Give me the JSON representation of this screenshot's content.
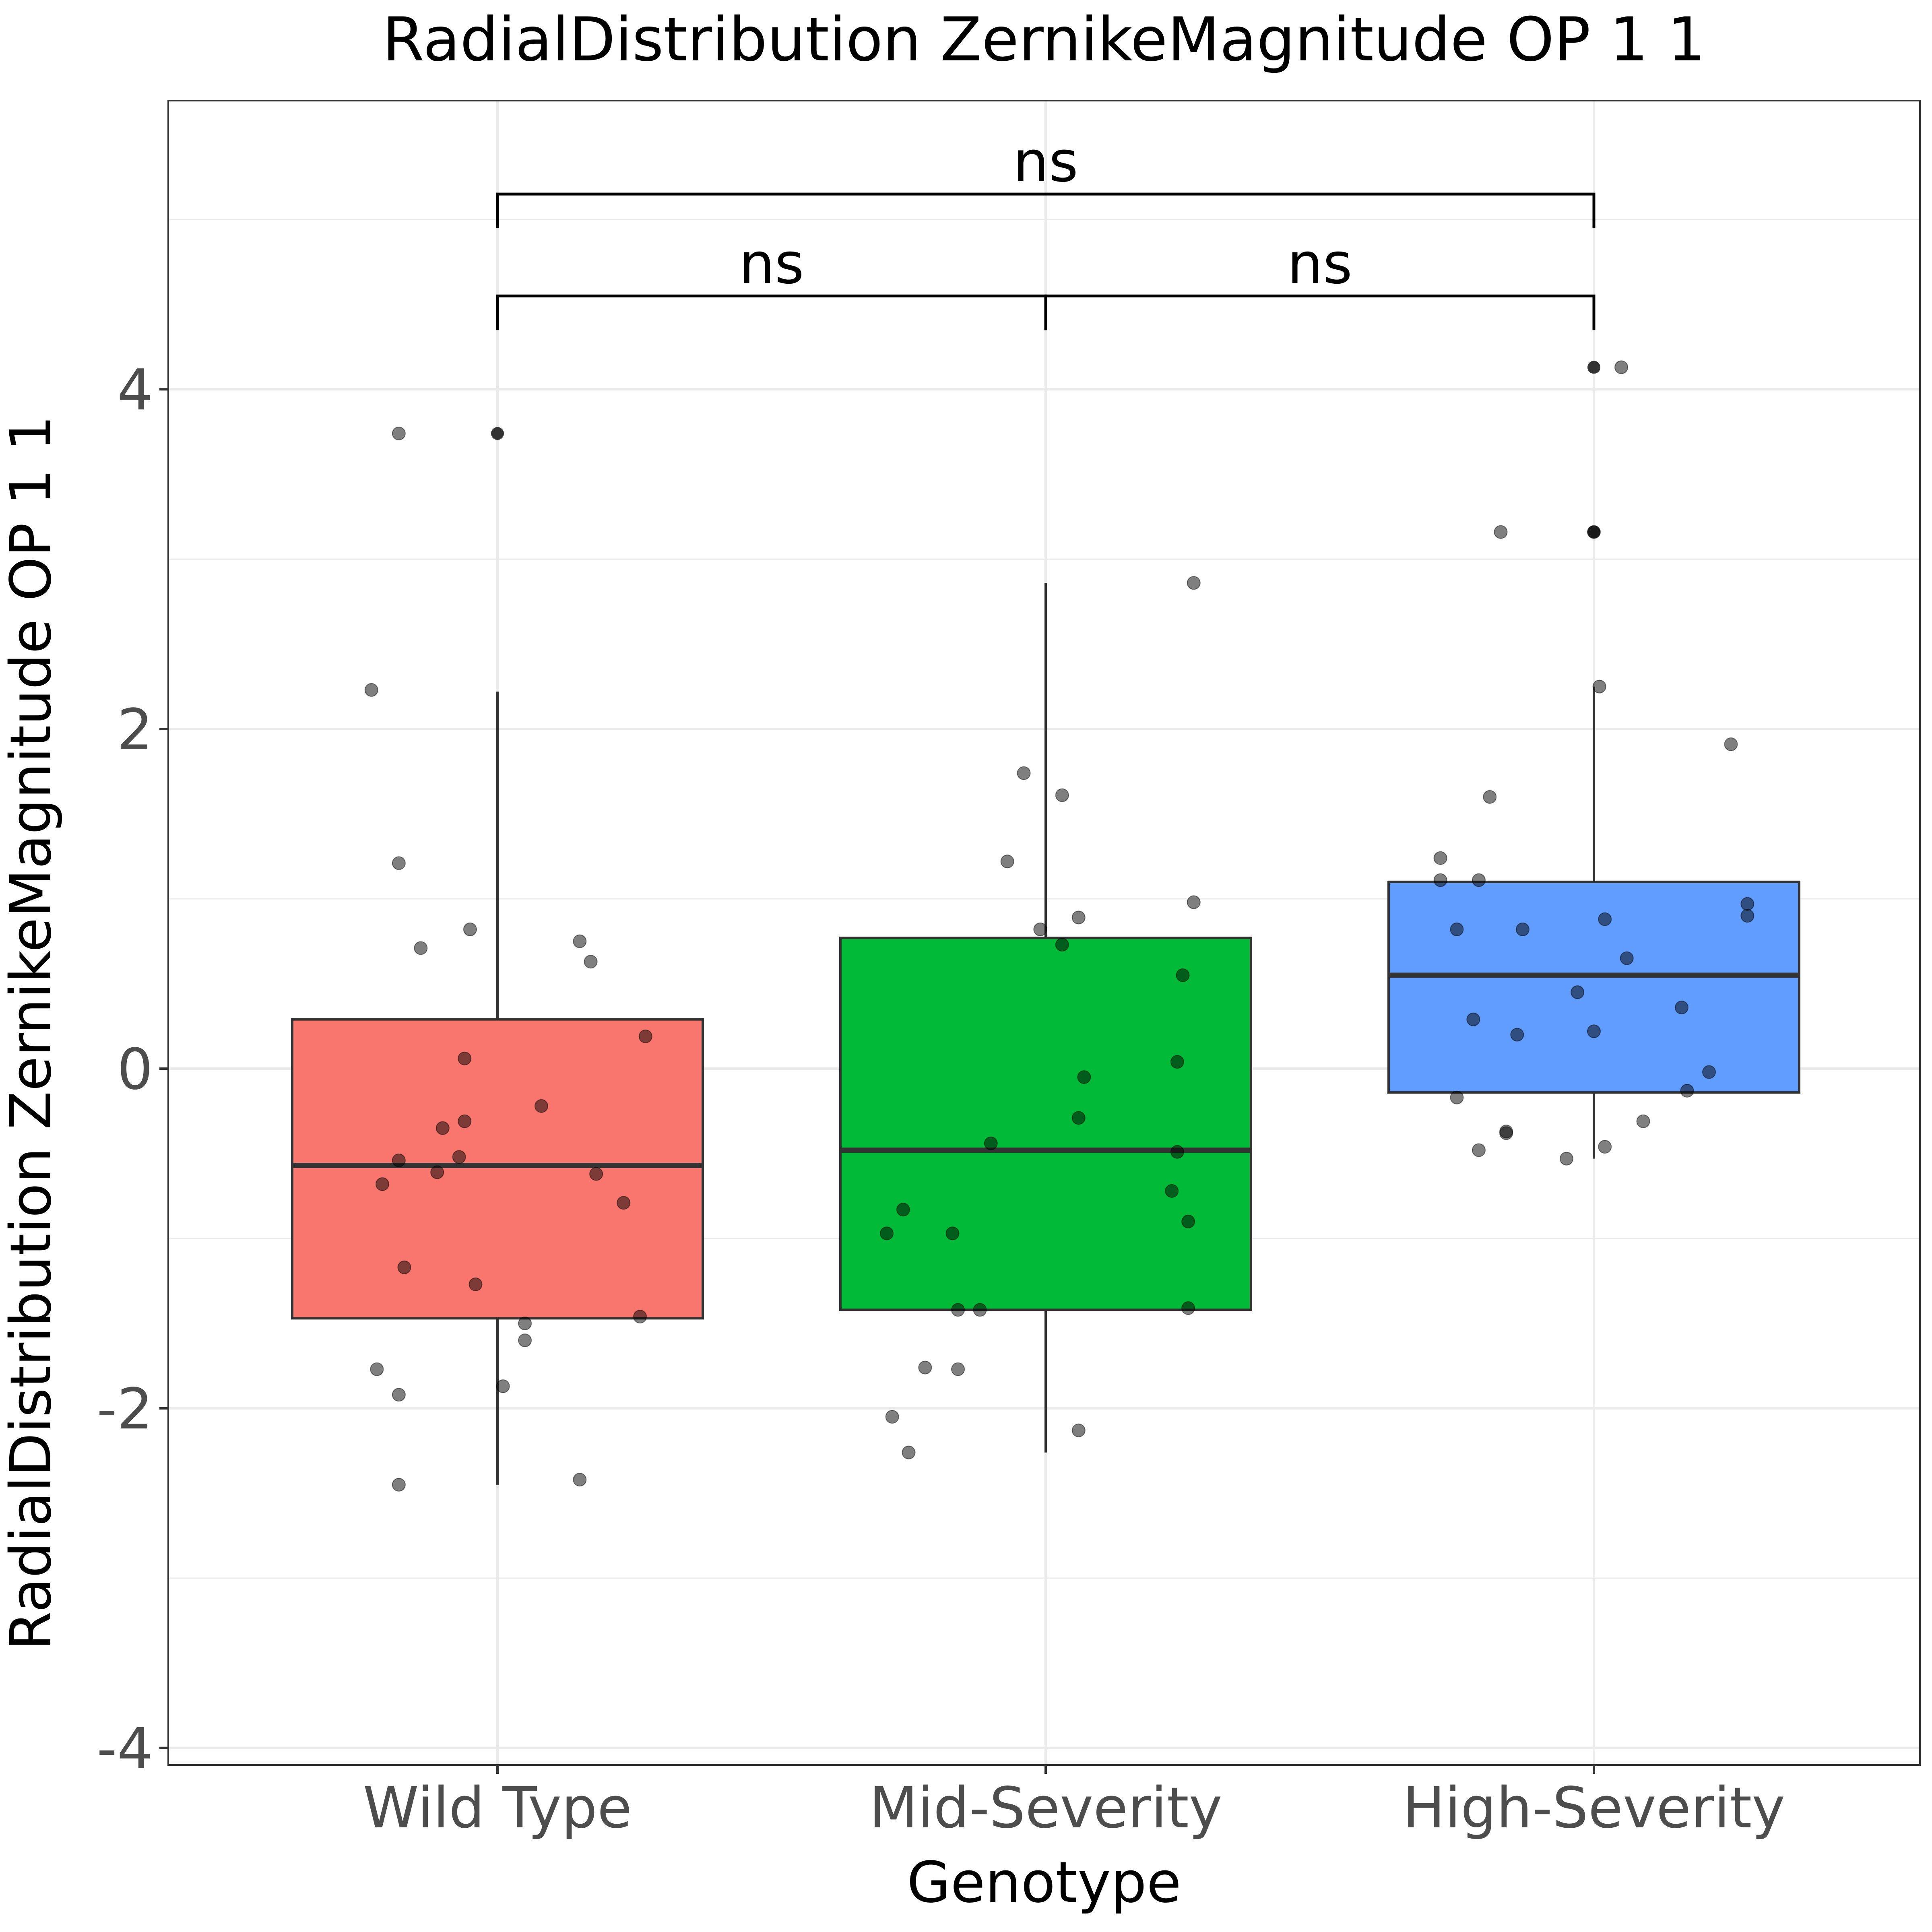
{
  "chart_data": {
    "type": "box",
    "title": "RadialDistribution ZernikeMagnitude OP 1 1",
    "xlabel": "Genotype",
    "ylabel": "RadialDistribution ZernikeMagnitude OP 1 1",
    "ylim": [
      -4.1,
      5.7
    ],
    "yticks": [
      -4,
      -2,
      0,
      2,
      4
    ],
    "ytick_labels": [
      "-4",
      "-2",
      "0",
      "2",
      "4"
    ],
    "minor_ygrid": [
      -3,
      -1,
      1,
      3,
      5
    ],
    "grid": true,
    "legend": "none",
    "categories": [
      "Wild Type",
      "Mid-Severity",
      "High-Severity"
    ],
    "colors": [
      "#F8766D",
      "#00BA38",
      "#619CFF"
    ],
    "boxes": [
      {
        "name": "Wild Type",
        "q1": -1.47,
        "median": -0.57,
        "q3": 0.29,
        "whisker_low": -2.45,
        "whisker_high": 2.22,
        "outliers": [
          3.74
        ]
      },
      {
        "name": "Mid-Severity",
        "q1": -1.42,
        "median": -0.48,
        "q3": 0.77,
        "whisker_low": -2.26,
        "whisker_high": 2.86,
        "outliers": []
      },
      {
        "name": "High-Severity",
        "q1": -0.14,
        "median": 0.55,
        "q3": 1.1,
        "whisker_low": -0.53,
        "whisker_high": 2.25,
        "outliers": [
          4.13,
          3.16
        ]
      }
    ],
    "points": [
      [
        [
          -0.18,
          3.74
        ],
        [
          -0.23,
          2.23
        ],
        [
          -0.18,
          1.21
        ],
        [
          -0.14,
          0.71
        ],
        [
          -0.05,
          0.82
        ],
        [
          0.15,
          0.75
        ],
        [
          0.17,
          0.63
        ],
        [
          -0.06,
          0.06
        ],
        [
          0.27,
          0.19
        ],
        [
          0.08,
          -0.22
        ],
        [
          -0.1,
          -0.35
        ],
        [
          -0.06,
          -0.31
        ],
        [
          -0.18,
          -0.54
        ],
        [
          -0.07,
          -0.52
        ],
        [
          -0.11,
          -0.61
        ],
        [
          0.18,
          -0.62
        ],
        [
          -0.21,
          -0.68
        ],
        [
          0.23,
          -0.79
        ],
        [
          -0.17,
          -1.17
        ],
        [
          -0.04,
          -1.27
        ],
        [
          0.26,
          -1.46
        ],
        [
          0.05,
          -1.5
        ],
        [
          0.05,
          -1.6
        ],
        [
          -0.22,
          -1.77
        ],
        [
          -0.18,
          -1.92
        ],
        [
          0.01,
          -1.87
        ],
        [
          0.15,
          -2.42
        ],
        [
          -0.18,
          -2.45
        ]
      ],
      [
        [
          0.27,
          2.86
        ],
        [
          -0.04,
          1.74
        ],
        [
          0.03,
          1.61
        ],
        [
          -0.07,
          1.22
        ],
        [
          0.27,
          0.98
        ],
        [
          0.06,
          0.89
        ],
        [
          -0.01,
          0.82
        ],
        [
          0.03,
          0.73
        ],
        [
          0.25,
          0.55
        ],
        [
          0.24,
          0.04
        ],
        [
          0.07,
          -0.05
        ],
        [
          0.06,
          -0.29
        ],
        [
          -0.1,
          -0.44
        ],
        [
          0.24,
          -0.49
        ],
        [
          0.23,
          -0.72
        ],
        [
          0.26,
          -0.9
        ],
        [
          -0.26,
          -0.83
        ],
        [
          -0.29,
          -0.97
        ],
        [
          -0.17,
          -0.97
        ],
        [
          -0.16,
          -1.42
        ],
        [
          -0.12,
          -1.42
        ],
        [
          0.26,
          -1.41
        ],
        [
          -0.22,
          -1.76
        ],
        [
          -0.16,
          -1.77
        ],
        [
          -0.28,
          -2.05
        ],
        [
          -0.25,
          -2.26
        ],
        [
          0.06,
          -2.13
        ]
      ],
      [
        [
          0.05,
          4.13
        ],
        [
          0.0,
          3.16
        ],
        [
          -0.17,
          3.16
        ],
        [
          0.01,
          2.25
        ],
        [
          0.25,
          1.91
        ],
        [
          -0.19,
          1.6
        ],
        [
          -0.28,
          1.24
        ],
        [
          -0.28,
          1.11
        ],
        [
          -0.21,
          1.11
        ],
        [
          0.28,
          0.97
        ],
        [
          0.02,
          0.88
        ],
        [
          0.28,
          0.9
        ],
        [
          -0.25,
          0.82
        ],
        [
          -0.13,
          0.82
        ],
        [
          0.06,
          0.65
        ],
        [
          -0.03,
          0.45
        ],
        [
          0.16,
          0.36
        ],
        [
          0.0,
          0.22
        ],
        [
          -0.22,
          0.29
        ],
        [
          -0.14,
          0.2
        ],
        [
          0.21,
          -0.02
        ],
        [
          0.17,
          -0.13
        ],
        [
          -0.25,
          -0.17
        ],
        [
          -0.16,
          -0.37
        ],
        [
          -0.16,
          -0.38
        ],
        [
          0.09,
          -0.31
        ],
        [
          -0.21,
          -0.48
        ],
        [
          -0.05,
          -0.53
        ],
        [
          0.02,
          -0.46
        ]
      ]
    ],
    "comparisons": [
      {
        "from": 0,
        "to": 1,
        "y": 4.55,
        "label": "ns"
      },
      {
        "from": 1,
        "to": 2,
        "y": 4.55,
        "label": "ns"
      },
      {
        "from": 0,
        "to": 2,
        "y": 5.15,
        "label": "ns"
      }
    ]
  }
}
